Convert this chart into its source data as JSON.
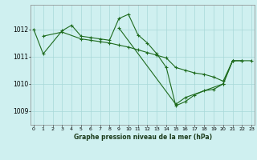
{
  "title": "Graphe pression niveau de la mer (hPa)",
  "background_color": "#cff0f0",
  "line_color": "#1e6b1e",
  "grid_color": "#a8d8d8",
  "x_ticks": [
    0,
    1,
    2,
    3,
    4,
    5,
    6,
    7,
    8,
    9,
    10,
    11,
    12,
    13,
    14,
    15,
    16,
    17,
    18,
    19,
    20,
    21,
    22,
    23
  ],
  "y_ticks": [
    1009,
    1010,
    1011,
    1012
  ],
  "ylim": [
    1008.5,
    1012.9
  ],
  "xlim": [
    -0.3,
    23.3
  ],
  "s1_x": [
    0,
    1,
    3,
    4,
    5,
    6,
    7,
    8,
    9,
    10,
    11,
    12,
    13,
    14,
    15,
    16,
    17,
    18,
    19,
    20,
    21
  ],
  "s1_y": [
    1012.0,
    1011.1,
    1011.95,
    1012.15,
    1011.75,
    1011.7,
    1011.65,
    1011.6,
    1012.4,
    1012.55,
    1011.8,
    1011.5,
    1011.1,
    1010.6,
    1009.2,
    1009.35,
    1009.6,
    1009.75,
    1009.8,
    1010.0,
    1010.85
  ],
  "s2_x": [
    1,
    3,
    5,
    6,
    7,
    8,
    9,
    10,
    11,
    12,
    13,
    14,
    15,
    16,
    17,
    18,
    19,
    20,
    21,
    22
  ],
  "s2_y": [
    1011.75,
    1011.9,
    1011.65,
    1011.6,
    1011.55,
    1011.5,
    1011.42,
    1011.35,
    1011.25,
    1011.15,
    1011.05,
    1010.95,
    1010.6,
    1010.5,
    1010.4,
    1010.35,
    1010.25,
    1010.1,
    1010.85,
    1010.85
  ],
  "s3_x": [
    9,
    15,
    16,
    20,
    21,
    22,
    23
  ],
  "s3_y": [
    1012.05,
    1009.25,
    1009.5,
    1010.0,
    1010.85,
    1010.85,
    1010.85
  ]
}
